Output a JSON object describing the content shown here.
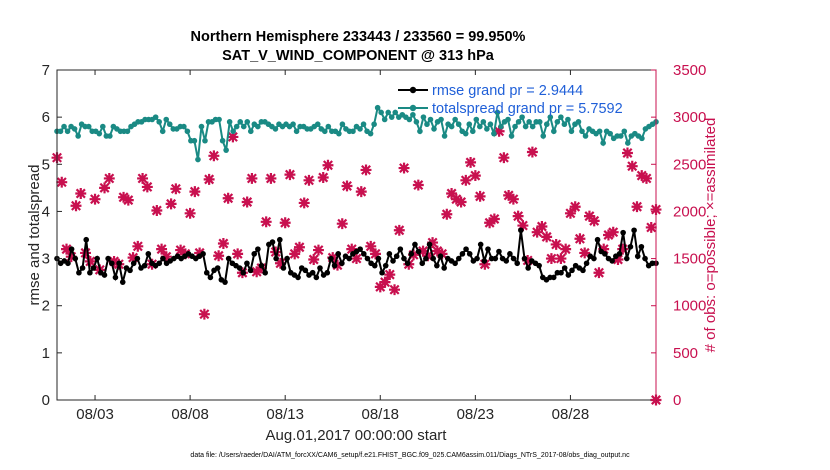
{
  "chart_data": {
    "type": "line",
    "title": [
      "Northern Hemisphere 233443 / 233560 = 99.950%",
      "SAT_V_WIND_COMPONENT @ 313 hPa"
    ],
    "xlabel": "Aug.01,2017 00:00:00 start",
    "ylabel": "rmse and totalspread",
    "y2label": "# of obs: o=possible; ×=assimilated",
    "footnote": "data file: /Users/raeder/DAI/ATM_forcXX/CAM6_setup/f.e21.FHIST_BGC.f09_025.CAM6assim.011/Diags_NTrS_2017-08/obs_diag_output.nc",
    "xlim": [
      0,
      31.5
    ],
    "xticks": [
      2,
      7,
      12,
      17,
      22,
      27
    ],
    "xticklabels": [
      "08/03",
      "08/08",
      "08/13",
      "08/18",
      "08/23",
      "08/28"
    ],
    "ylim": [
      0,
      7
    ],
    "yticks": [
      0,
      1,
      2,
      3,
      4,
      5,
      6,
      7
    ],
    "yticklabels": [
      "0",
      "1",
      "2",
      "3",
      "4",
      "5",
      "6",
      "7"
    ],
    "y2lim": [
      0,
      3500
    ],
    "y2ticks": [
      0,
      500,
      1000,
      1500,
      2000,
      2500,
      3000,
      3500
    ],
    "y2ticklabels": [
      "0",
      "500",
      "1000",
      "1500",
      "2000",
      "2500",
      "3000",
      "3500"
    ],
    "legend_location": "top-right",
    "series": [
      {
        "name": "rmse grand pr = 2.9444",
        "color": "#000000",
        "marker": "circle",
        "values": [
          3.0,
          2.9,
          2.95,
          2.9,
          3.2,
          3.0,
          2.7,
          2.8,
          3.4,
          2.7,
          2.8,
          3.0,
          2.7,
          2.65,
          3.0,
          2.9,
          2.6,
          2.9,
          2.5,
          2.8,
          2.75,
          2.9,
          3.0,
          2.8,
          2.85,
          3.1,
          2.9,
          2.85,
          2.9,
          3.0,
          2.9,
          2.95,
          3.0,
          3.05,
          3.0,
          3.05,
          3.1,
          3.05,
          3.0,
          3.05,
          3.1,
          2.7,
          2.6,
          2.75,
          2.8,
          2.55,
          2.5,
          3.0,
          2.9,
          2.85,
          2.8,
          2.7,
          2.9,
          2.75,
          3.1,
          3.2,
          2.85,
          2.7,
          3.3,
          3.35,
          3.0,
          3.4,
          2.8,
          3.0,
          2.7,
          2.65,
          2.6,
          2.8,
          2.75,
          2.65,
          2.7,
          2.6,
          2.8,
          2.65,
          2.7,
          3.0,
          2.85,
          3.1,
          2.9,
          3.05,
          3.0,
          3.1,
          3.15,
          3.2,
          3.1,
          3.0,
          2.9,
          2.85,
          3.0,
          2.7,
          2.85,
          3.1,
          2.95,
          3.05,
          3.2,
          3.0,
          2.9,
          3.1,
          3.3,
          3.15,
          2.9,
          3.0,
          3.3,
          3.0,
          2.85,
          3.05,
          2.8,
          3.0,
          2.95,
          2.9,
          3.0,
          3.1,
          3.2,
          3.1,
          2.95,
          3.0,
          3.3,
          2.95,
          3.2,
          3.0,
          3.0,
          3.15,
          3.0,
          2.95,
          3.1,
          3.0,
          2.9,
          3.6,
          3.0,
          2.8,
          2.95,
          2.9,
          2.85,
          2.6,
          2.55,
          2.6,
          2.6,
          2.7,
          2.7,
          2.8,
          2.65,
          2.75,
          2.85,
          2.8,
          2.75,
          2.9,
          3.05,
          3.0,
          3.4,
          3.15,
          3.1,
          3.0,
          2.95,
          3.05,
          3.1,
          3.55,
          3.0,
          3.25,
          3.6,
          3.05,
          3.25,
          3.0,
          2.85,
          2.9,
          2.9
        ]
      },
      {
        "name": "totalspread grand pr = 5.7592",
        "color": "#1a8a84",
        "marker": "circle",
        "values": [
          5.7,
          5.7,
          5.8,
          5.7,
          5.8,
          5.75,
          5.6,
          5.85,
          5.8,
          5.8,
          5.7,
          5.7,
          5.65,
          5.8,
          5.6,
          5.6,
          5.8,
          5.75,
          5.7,
          5.7,
          5.7,
          5.8,
          5.85,
          5.9,
          5.9,
          5.95,
          5.95,
          5.95,
          6.0,
          5.9,
          5.7,
          5.95,
          5.85,
          5.75,
          5.75,
          5.8,
          5.8,
          5.7,
          5.5,
          5.5,
          5.1,
          5.8,
          5.5,
          5.9,
          5.9,
          5.95,
          5.95,
          5.5,
          5.3,
          5.9,
          5.7,
          5.8,
          5.9,
          5.8,
          5.9,
          5.7,
          5.85,
          5.8,
          5.9,
          5.9,
          5.85,
          5.8,
          5.75,
          5.85,
          5.8,
          5.85,
          5.8,
          5.85,
          5.7,
          5.8,
          5.8,
          5.75,
          5.75,
          5.8,
          5.85,
          5.75,
          5.7,
          5.8,
          5.7,
          5.7,
          5.65,
          5.85,
          5.75,
          5.7,
          5.7,
          5.8,
          5.75,
          5.85,
          5.7,
          5.65,
          5.85,
          6.2,
          6.1,
          5.95,
          6.1,
          6.0,
          6.1,
          6.0,
          6.05,
          6.0,
          5.95,
          6.05,
          5.9,
          5.7,
          6.0,
          5.85,
          5.95,
          5.75,
          5.9,
          5.95,
          5.6,
          5.85,
          5.8,
          5.95,
          5.85,
          5.7,
          5.65,
          5.85,
          5.7,
          5.95,
          5.8,
          5.9,
          5.75,
          5.85,
          5.65,
          6.1,
          5.8,
          5.9,
          5.95,
          5.6,
          5.8,
          5.9,
          6.0,
          5.8,
          5.9,
          5.8,
          5.9,
          5.9,
          5.6,
          5.85,
          6.0,
          5.7,
          5.9,
          6.0,
          5.85,
          5.95,
          5.7,
          5.85,
          5.9,
          5.7,
          5.6,
          5.75,
          5.7,
          5.65,
          5.7,
          5.45,
          5.7,
          5.65,
          5.55,
          5.6,
          5.6,
          5.7,
          5.45,
          5.6,
          5.65,
          5.6,
          5.55,
          5.75,
          5.8,
          5.85,
          5.9
        ]
      },
      {
        "name": "assimilated obs",
        "axis": "right",
        "color": "#c8104f",
        "marker": "x",
        "points": [
          [
            0.0,
            2570
          ],
          [
            0.25,
            2310
          ],
          [
            0.5,
            1600
          ],
          [
            0.75,
            1520
          ],
          [
            1.0,
            2060
          ],
          [
            1.25,
            2190
          ],
          [
            1.5,
            1560
          ],
          [
            1.75,
            1470
          ],
          [
            2.0,
            2130
          ],
          [
            2.25,
            1380
          ],
          [
            2.5,
            2250
          ],
          [
            2.75,
            2350
          ],
          [
            3.0,
            1470
          ],
          [
            3.25,
            1440
          ],
          [
            3.5,
            2150
          ],
          [
            3.75,
            2120
          ],
          [
            4.0,
            1510
          ],
          [
            4.25,
            1630
          ],
          [
            4.5,
            2350
          ],
          [
            4.75,
            2260
          ],
          [
            5.0,
            1440
          ],
          [
            5.25,
            2010
          ],
          [
            5.5,
            1600
          ],
          [
            5.75,
            1520
          ],
          [
            6.0,
            2080
          ],
          [
            6.25,
            2240
          ],
          [
            6.5,
            1590
          ],
          [
            6.75,
            1550
          ],
          [
            7.0,
            1980
          ],
          [
            7.25,
            2210
          ],
          [
            7.5,
            1560
          ],
          [
            7.75,
            910
          ],
          [
            8.0,
            2340
          ],
          [
            8.25,
            2590
          ],
          [
            8.5,
            1530
          ],
          [
            8.75,
            1660
          ],
          [
            9.0,
            2140
          ],
          [
            9.25,
            2790
          ],
          [
            9.5,
            1550
          ],
          [
            9.75,
            1350
          ],
          [
            10.0,
            2100
          ],
          [
            10.25,
            2350
          ],
          [
            10.5,
            1360
          ],
          [
            10.75,
            1400
          ],
          [
            11.0,
            1890
          ],
          [
            11.25,
            2350
          ],
          [
            11.5,
            1570
          ],
          [
            11.75,
            1450
          ],
          [
            12.0,
            1880
          ],
          [
            12.25,
            2390
          ],
          [
            12.5,
            1550
          ],
          [
            12.75,
            1620
          ],
          [
            13.0,
            2090
          ],
          [
            13.25,
            2330
          ],
          [
            13.5,
            1490
          ],
          [
            13.75,
            1590
          ],
          [
            14.0,
            2360
          ],
          [
            14.25,
            2490
          ],
          [
            14.5,
            1510
          ],
          [
            14.75,
            1430
          ],
          [
            15.0,
            1870
          ],
          [
            15.25,
            2270
          ],
          [
            15.5,
            1600
          ],
          [
            15.75,
            1500
          ],
          [
            16.0,
            2210
          ],
          [
            16.25,
            2440
          ],
          [
            16.5,
            1630
          ],
          [
            16.75,
            1550
          ],
          [
            17.0,
            1200
          ],
          [
            17.25,
            1250
          ],
          [
            17.5,
            1330
          ],
          [
            17.75,
            1170
          ],
          [
            18.0,
            1800
          ],
          [
            18.25,
            2460
          ],
          [
            18.5,
            1440
          ],
          [
            18.75,
            1540
          ],
          [
            19.0,
            2280
          ],
          [
            19.25,
            1580
          ],
          [
            19.5,
            1530
          ],
          [
            19.75,
            1670
          ],
          [
            20.0,
            1580
          ],
          [
            20.25,
            1550
          ],
          [
            20.5,
            1970
          ],
          [
            20.75,
            2190
          ],
          [
            21.0,
            2130
          ],
          [
            21.25,
            2100
          ],
          [
            21.5,
            2330
          ],
          [
            21.75,
            2520
          ],
          [
            22.0,
            2380
          ],
          [
            22.25,
            2160
          ],
          [
            22.5,
            1440
          ],
          [
            22.75,
            1880
          ],
          [
            23.0,
            1920
          ],
          [
            23.25,
            2850
          ],
          [
            23.5,
            2570
          ],
          [
            23.75,
            2170
          ],
          [
            24.0,
            2130
          ],
          [
            24.25,
            1950
          ],
          [
            24.5,
            1850
          ],
          [
            24.75,
            1480
          ],
          [
            25.0,
            2630
          ],
          [
            25.25,
            1780
          ],
          [
            25.5,
            1840
          ],
          [
            25.75,
            1730
          ],
          [
            26.0,
            1500
          ],
          [
            26.25,
            1650
          ],
          [
            26.5,
            1500
          ],
          [
            26.75,
            1600
          ],
          [
            27.0,
            1980
          ],
          [
            27.25,
            2050
          ],
          [
            27.5,
            1710
          ],
          [
            27.75,
            1560
          ],
          [
            28.0,
            1950
          ],
          [
            28.25,
            1900
          ],
          [
            28.5,
            1350
          ],
          [
            28.75,
            1600
          ],
          [
            29.0,
            1750
          ],
          [
            29.25,
            1780
          ],
          [
            29.5,
            1490
          ],
          [
            29.75,
            1600
          ],
          [
            30.0,
            2620
          ],
          [
            30.25,
            2480
          ],
          [
            30.5,
            2050
          ],
          [
            30.75,
            2380
          ],
          [
            31.0,
            2350
          ],
          [
            31.25,
            1830
          ],
          [
            31.5,
            2020
          ],
          [
            31.5,
            0
          ]
        ]
      }
    ]
  }
}
